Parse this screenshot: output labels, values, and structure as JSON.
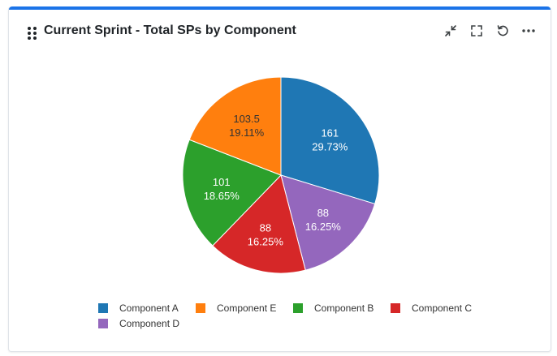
{
  "header": {
    "title": "Current Sprint - Total SPs by Component",
    "icons": [
      "drag-handle-icon",
      "collapse-icon",
      "fullscreen-icon",
      "refresh-icon",
      "more-options-icon"
    ]
  },
  "colors": {
    "accent": "#1a73e8",
    "Component A": "#1f77b4",
    "Component E": "#ff7f0e",
    "Component B": "#2ca02c",
    "Component C": "#d62728",
    "Component D": "#9467bd"
  },
  "chart_data": {
    "type": "pie",
    "title": "Current Sprint - Total SPs by Component",
    "start_angle_deg": 0,
    "direction": "clockwise",
    "legend_position": "bottom",
    "slices": [
      {
        "label": "Component A",
        "value": 161,
        "value_label": "161",
        "percent_label": "29.73%",
        "color": "#1f77b4"
      },
      {
        "label": "Component D",
        "value": 88,
        "value_label": "88",
        "percent_label": "16.25%",
        "color": "#9467bd"
      },
      {
        "label": "Component C",
        "value": 88,
        "value_label": "88",
        "percent_label": "16.25%",
        "color": "#d62728"
      },
      {
        "label": "Component B",
        "value": 101,
        "value_label": "101",
        "percent_label": "18.65%",
        "color": "#2ca02c"
      },
      {
        "label": "Component E",
        "value": 103.5,
        "value_label": "103.5",
        "percent_label": "19.11%",
        "color": "#ff7f0e"
      }
    ],
    "legend": [
      {
        "label": "Component A",
        "color": "#1f77b4"
      },
      {
        "label": "Component E",
        "color": "#ff7f0e"
      },
      {
        "label": "Component B",
        "color": "#2ca02c"
      },
      {
        "label": "Component C",
        "color": "#d62728"
      },
      {
        "label": "Component D",
        "color": "#9467bd"
      }
    ]
  }
}
